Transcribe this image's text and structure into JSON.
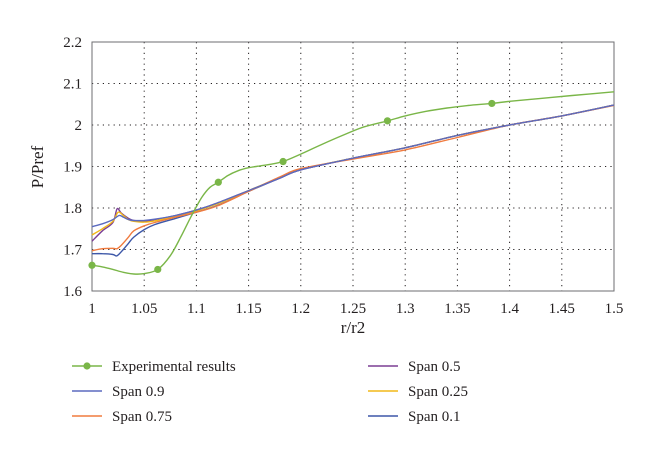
{
  "chart_data": {
    "type": "line",
    "xlabel": "r/r2",
    "ylabel": "P/Pref",
    "xlim": [
      1,
      1.5
    ],
    "ylim": [
      1.6,
      2.2
    ],
    "x_ticks": [
      "1",
      "1.05",
      "1.1",
      "1.15",
      "1.2",
      "1.25",
      "1.3",
      "1.35",
      "1.4",
      "1.45",
      "1.5"
    ],
    "y_ticks": [
      "1.6",
      "1.7",
      "1.8",
      "1.9",
      "2",
      "2.1",
      "2.2"
    ],
    "grid": true,
    "legend_position": "bottom",
    "series": [
      {
        "name": "Experimental results",
        "color": "#7ab648",
        "markers": true,
        "x": [
          1.0,
          1.063,
          1.121,
          1.183,
          1.283,
          1.383
        ],
        "y": [
          1.662,
          1.652,
          1.862,
          1.912,
          2.01,
          2.052
        ],
        "curve_x": [
          1.0,
          1.01,
          1.02,
          1.03,
          1.04,
          1.05,
          1.063,
          1.075,
          1.085,
          1.095,
          1.105,
          1.113,
          1.121,
          1.13,
          1.14,
          1.15,
          1.16,
          1.17,
          1.183,
          1.2,
          1.22,
          1.24,
          1.26,
          1.283,
          1.3,
          1.32,
          1.34,
          1.36,
          1.383,
          1.4,
          1.43,
          1.46,
          1.5
        ],
        "curve_y": [
          1.662,
          1.658,
          1.652,
          1.645,
          1.641,
          1.642,
          1.652,
          1.685,
          1.73,
          1.78,
          1.825,
          1.85,
          1.862,
          1.878,
          1.89,
          1.897,
          1.901,
          1.905,
          1.912,
          1.93,
          1.953,
          1.975,
          1.995,
          2.01,
          2.022,
          2.033,
          2.041,
          2.047,
          2.052,
          2.057,
          2.064,
          2.071,
          2.08
        ]
      },
      {
        "name": "Span 0.9",
        "color": "#5b6abf",
        "x": [
          1.0,
          1.01,
          1.02,
          1.026,
          1.03,
          1.035,
          1.04,
          1.05,
          1.06,
          1.08,
          1.1,
          1.12,
          1.15,
          1.18,
          1.2,
          1.25,
          1.3,
          1.35,
          1.4,
          1.45,
          1.5
        ],
        "y": [
          1.755,
          1.762,
          1.772,
          1.782,
          1.778,
          1.772,
          1.77,
          1.77,
          1.773,
          1.782,
          1.795,
          1.812,
          1.842,
          1.872,
          1.892,
          1.92,
          1.945,
          1.975,
          2.0,
          2.022,
          2.048
        ]
      },
      {
        "name": "Span 0.75",
        "color": "#f07b3f",
        "x": [
          1.0,
          1.01,
          1.02,
          1.024,
          1.028,
          1.035,
          1.04,
          1.05,
          1.06,
          1.08,
          1.1,
          1.12,
          1.15,
          1.18,
          1.2,
          1.25,
          1.3,
          1.35,
          1.4,
          1.45,
          1.5
        ],
        "y": [
          1.697,
          1.702,
          1.703,
          1.702,
          1.71,
          1.73,
          1.745,
          1.757,
          1.765,
          1.778,
          1.79,
          1.805,
          1.84,
          1.875,
          1.895,
          1.918,
          1.94,
          1.97,
          2.0,
          2.022,
          2.047
        ]
      },
      {
        "name": "Span 0.5",
        "color": "#7b3f94",
        "x": [
          1.0,
          1.01,
          1.02,
          1.024,
          1.028,
          1.035,
          1.04,
          1.05,
          1.06,
          1.08,
          1.1,
          1.12,
          1.15,
          1.18,
          1.2,
          1.25,
          1.3,
          1.35,
          1.4,
          1.45,
          1.5
        ],
        "y": [
          1.72,
          1.745,
          1.765,
          1.798,
          1.788,
          1.775,
          1.77,
          1.768,
          1.772,
          1.782,
          1.795,
          1.812,
          1.842,
          1.872,
          1.892,
          1.92,
          1.945,
          1.975,
          2.0,
          2.022,
          2.048
        ]
      },
      {
        "name": "Span 0.25",
        "color": "#f2b818",
        "x": [
          1.0,
          1.01,
          1.02,
          1.025,
          1.03,
          1.035,
          1.04,
          1.05,
          1.06,
          1.08,
          1.1,
          1.12,
          1.15,
          1.18,
          1.2,
          1.25,
          1.3,
          1.35,
          1.4,
          1.45,
          1.5
        ],
        "y": [
          1.735,
          1.75,
          1.768,
          1.79,
          1.782,
          1.772,
          1.768,
          1.766,
          1.769,
          1.78,
          1.793,
          1.81,
          1.842,
          1.873,
          1.893,
          1.92,
          1.945,
          1.975,
          2.0,
          2.022,
          2.048
        ]
      },
      {
        "name": "Span 0.1",
        "color": "#3d57a8",
        "x": [
          1.0,
          1.01,
          1.02,
          1.024,
          1.03,
          1.035,
          1.04,
          1.05,
          1.06,
          1.08,
          1.1,
          1.12,
          1.15,
          1.18,
          1.2,
          1.25,
          1.3,
          1.35,
          1.4,
          1.45,
          1.5
        ],
        "y": [
          1.69,
          1.69,
          1.688,
          1.685,
          1.7,
          1.715,
          1.73,
          1.748,
          1.76,
          1.775,
          1.79,
          1.806,
          1.84,
          1.872,
          1.892,
          1.92,
          1.945,
          1.975,
          2.0,
          2.022,
          2.048
        ]
      }
    ]
  }
}
